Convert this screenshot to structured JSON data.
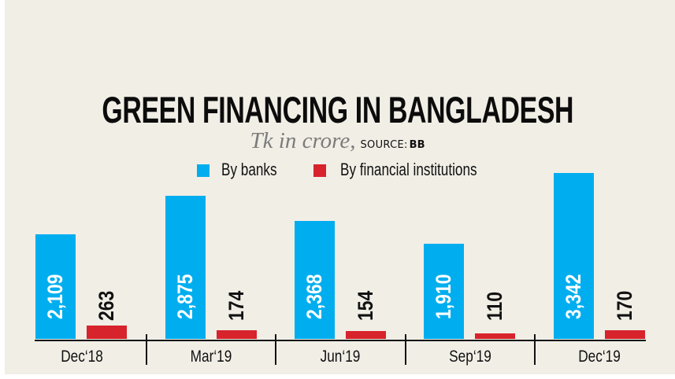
{
  "chart_data": {
    "type": "bar",
    "title": "GREEN FINANCING IN BANGLADESH",
    "subtitle_unit": "Tk in crore,",
    "source_label": "SOURCE:",
    "source_value": "BB",
    "xlabel": "",
    "ylabel": "Tk in crore",
    "categories": [
      "Dec‘18",
      "Mar‘19",
      "Jun‘19",
      "Sep‘19",
      "Dec‘19"
    ],
    "series": [
      {
        "name": "By banks",
        "color": "#00aeef",
        "values": [
          2109,
          2875,
          2368,
          1910,
          3342
        ],
        "labels": [
          "2,109",
          "2,875",
          "2,368",
          "1,910",
          "3,342"
        ]
      },
      {
        "name": "By financial institutions",
        "color": "#d7232b",
        "values": [
          263,
          174,
          154,
          110,
          170
        ],
        "labels": [
          "263",
          "174",
          "154",
          "110",
          "170"
        ]
      }
    ],
    "ylim": [
      0,
      3500
    ],
    "grid": false,
    "legend_position": "top-center"
  },
  "colors": {
    "background": "#f1eee6",
    "banks": "#00aeef",
    "fi": "#d7232b",
    "text": "#111111",
    "subtitle_gray": "#7d7c7b"
  }
}
